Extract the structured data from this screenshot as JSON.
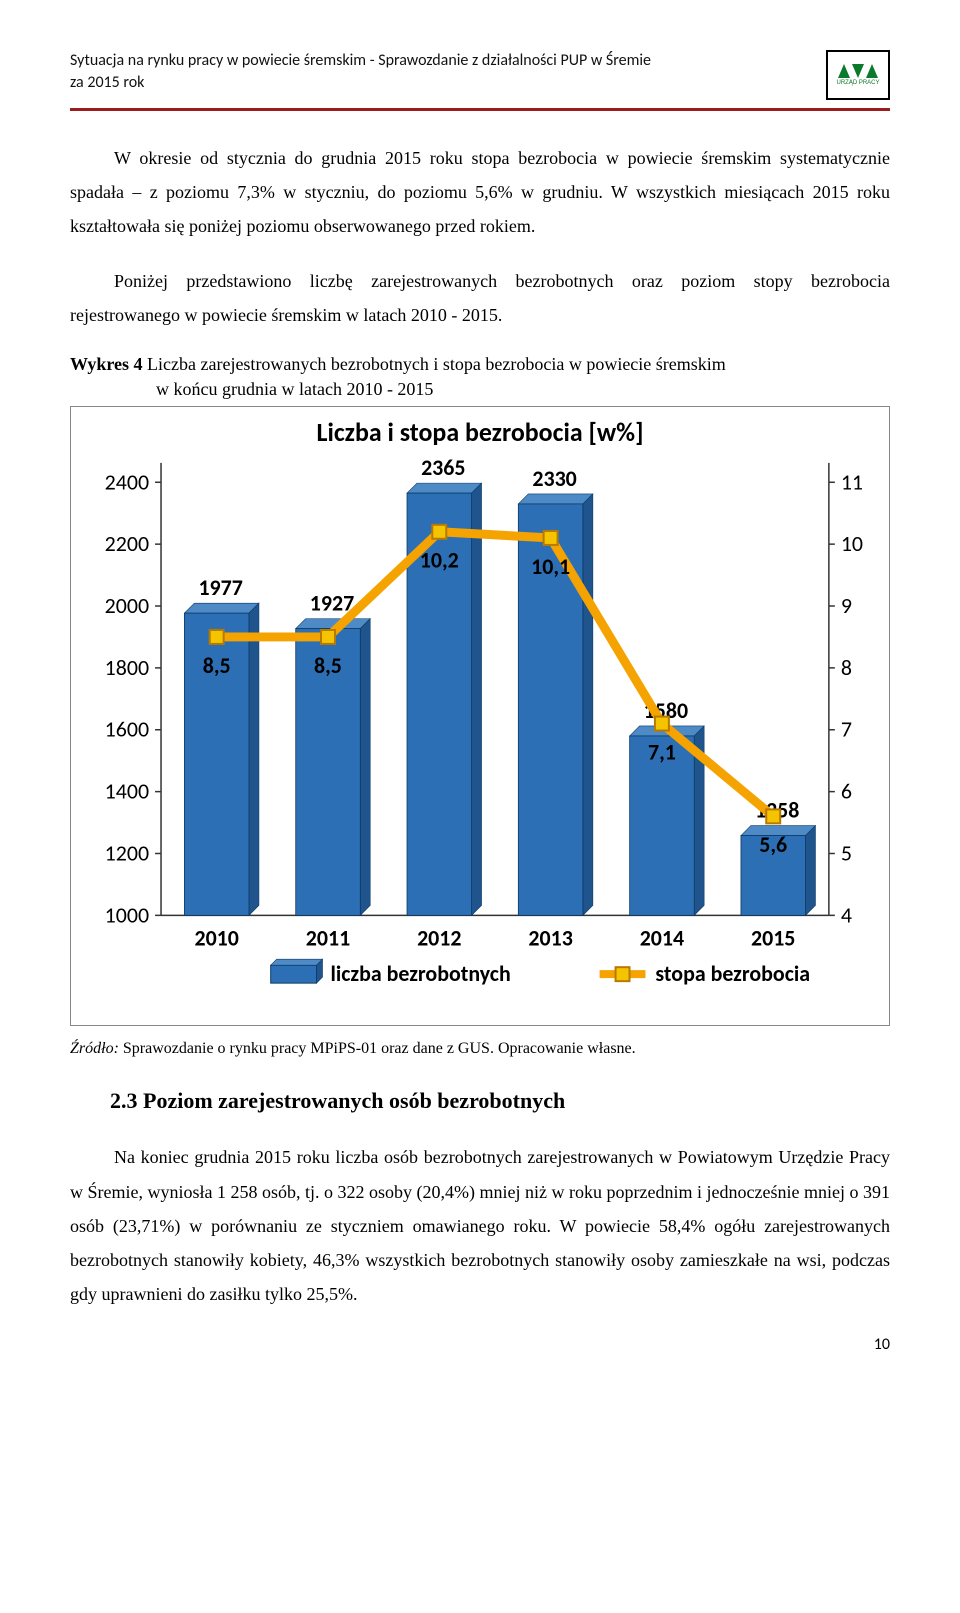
{
  "header": {
    "line1": "Sytuacja na rynku pracy w powiecie śremskim - Sprawozdanie z działalności PUP w Śremie",
    "line2": "za 2015 rok",
    "logo_label": "URZĄD PRACY",
    "logo_green": "#0b7a2a",
    "rule_color": "#9c1c1c"
  },
  "paragraphs": {
    "p1": "W okresie od stycznia do grudnia 2015 roku stopa bezrobocia w powiecie śremskim systematycznie spadała – z poziomu 7,3% w styczniu, do poziomu 5,6% w grudniu. W wszystkich miesiącach 2015 roku kształtowała się poniżej poziomu obserwowanego przed rokiem.",
    "p2": "Poniżej przedstawiono liczbę zarejestrowanych bezrobotnych oraz poziom stopy bezrobocia rejestrowanego w powiecie śremskim w latach 2010 -  2015.",
    "p3": "Na koniec grudnia 2015 roku liczba osób bezrobotnych zarejestrowanych w Powiatowym Urzędzie Pracy w Śremie, wyniosła 1 258 osób, tj. o 322 osoby (20,4%) mniej niż w roku poprzednim i jednocześnie mniej o 391 osób (23,71%) w porównaniu ze styczniem omawianego roku. W powiecie 58,4% ogółu zarejestrowanych bezrobotnych stanowiły kobiety, 46,3% wszystkich bezrobotnych stanowiły osoby zamieszkałe na wsi, podczas gdy uprawnieni do zasiłku tylko 25,5%."
  },
  "caption": {
    "lead": "Wykres 4",
    "rest_line1": "  Liczba zarejestrowanych bezrobotnych i stopa bezrobocia w powiecie śremskim",
    "rest_line2": "w końcu grudnia w latach 2010 - 2015"
  },
  "source": {
    "lead": "Źródło:",
    "rest": " Sprawozdanie o rynku pracy MPiPS-01 oraz dane z GUS. Opracowanie własne."
  },
  "section": {
    "heading": "2.3 Poziom zarejestrowanych osób bezrobotnych"
  },
  "page_number": "10",
  "chart": {
    "title": "Liczba i stopa bezrobocia [w%]",
    "title_fontsize": 26,
    "title_fontweight": "bold",
    "categories": [
      "2010",
      "2011",
      "2012",
      "2013",
      "2014",
      "2015"
    ],
    "bar_values": [
      1977,
      1927,
      2365,
      2330,
      1580,
      1258
    ],
    "bar_labels_pos": "top",
    "line_values": [
      8.5,
      8.5,
      10.2,
      10.1,
      7.1,
      5.6
    ],
    "line_labels": [
      "8,5",
      "8,5",
      "10,2",
      "10,1",
      "7,1",
      "5,6"
    ],
    "y_left_label": "",
    "y_left_ticks": [
      1000,
      1200,
      1400,
      1600,
      1800,
      2000,
      2200,
      2400
    ],
    "y_left_lim": [
      1000,
      2450
    ],
    "y_right_ticks": [
      4,
      5,
      6,
      7,
      8,
      9,
      10,
      11
    ],
    "y_right_lim": [
      4,
      11.25
    ],
    "bar_fill": "#2d6fb4",
    "bar_stroke": "#0a3a66",
    "bar_width_ratio": 0.58,
    "line_color": "#f5a300",
    "marker_fill": "#f5c400",
    "marker_stroke": "#b87900",
    "marker_size": 14,
    "axis_color": "#333333",
    "tick_fontsize": 22,
    "cat_fontsize": 22,
    "value_fontsize": 22,
    "legend_series1": "liczba bezrobotnych",
    "legend_series2": "stopa bezrobocia",
    "background": "#ffffff"
  }
}
